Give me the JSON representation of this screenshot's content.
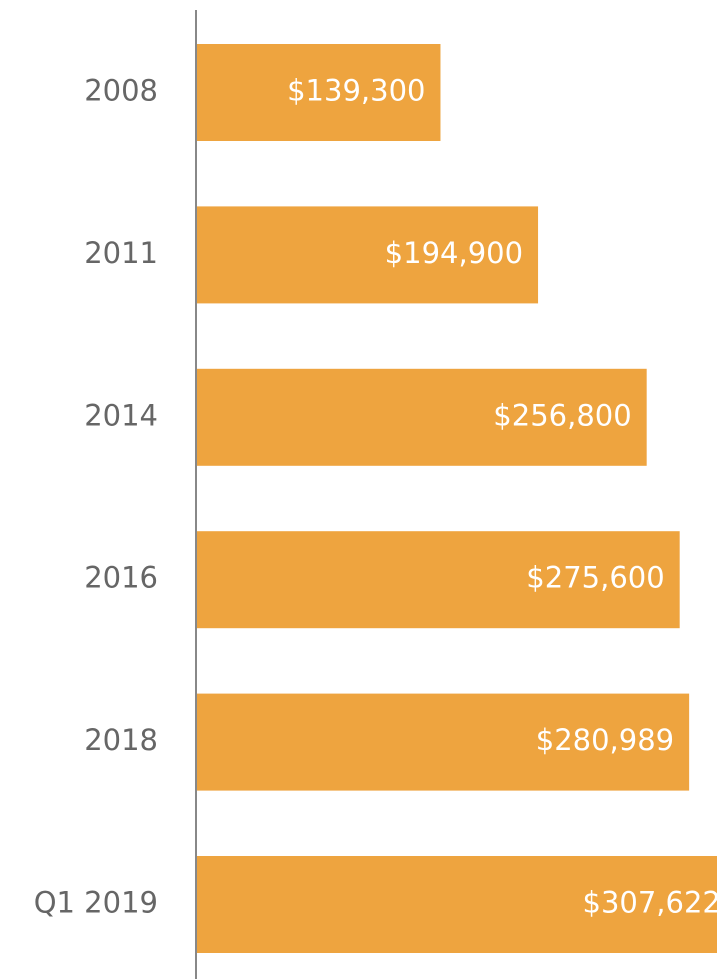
{
  "chart_data": {
    "type": "bar",
    "orientation": "horizontal",
    "categories": [
      "2008",
      "2011",
      "2014",
      "2016",
      "2018",
      "Q1 2019"
    ],
    "values": [
      139300,
      194900,
      256800,
      275600,
      280989,
      307622
    ],
    "value_labels": [
      "$139,300",
      "$194,900",
      "$256,800",
      "$275,600",
      "$280,989",
      "$307,622"
    ],
    "color": "#eea43f"
  }
}
